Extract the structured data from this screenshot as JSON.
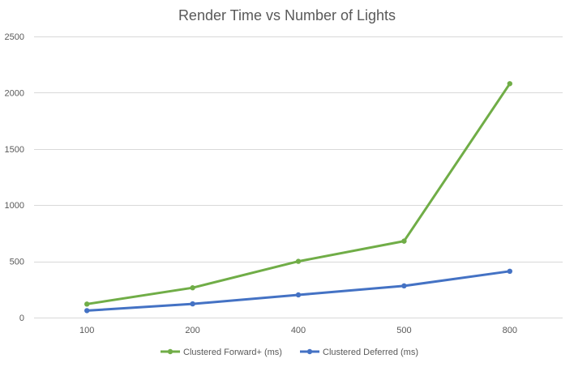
{
  "chart_data": {
    "type": "line",
    "title": "Render Time vs Number of Lights",
    "xlabel": "",
    "ylabel": "",
    "categories": [
      "100",
      "200",
      "400",
      "500",
      "800"
    ],
    "ylim": [
      0,
      2500
    ],
    "yticks": [
      "0",
      "500",
      "1000",
      "1500",
      "2000",
      "2500"
    ],
    "grid": true,
    "legend_position": "bottom",
    "series": [
      {
        "name": "Clustered Forward+ (ms)",
        "color": "#70ad47",
        "values": [
          120,
          265,
          500,
          680,
          2080
        ]
      },
      {
        "name": "Clustered Deferred (ms)",
        "color": "#4472c4",
        "values": [
          62,
          122,
          202,
          282,
          412
        ]
      }
    ]
  }
}
